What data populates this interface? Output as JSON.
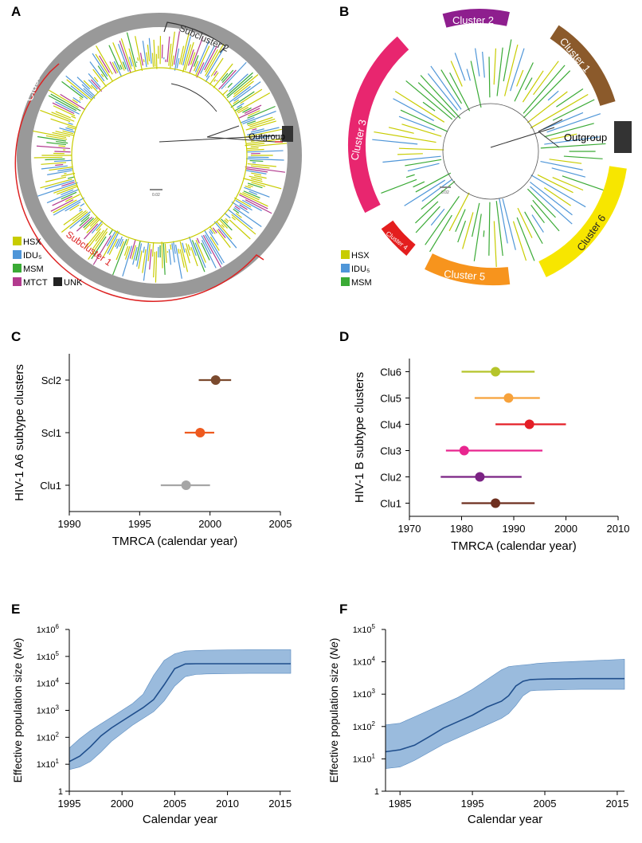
{
  "panels": {
    "A": {
      "letter": "A",
      "cluster_label": "Cluster 1",
      "subcluster1_label": "Subcluster 1",
      "subcluster2_label": "Subcluster 2",
      "outgroup_label": "Outgroup",
      "scale_label": "0.02",
      "legend": [
        {
          "label": "HSX",
          "color": "#c8cc00"
        },
        {
          "label": "IDU₅",
          "color": "#4f96d8"
        },
        {
          "label": "MSM",
          "color": "#3aaa35"
        },
        {
          "label": "MTCT",
          "color": "#b23a8e"
        },
        {
          "label": "UNK",
          "color": "#222222"
        }
      ]
    },
    "B": {
      "letter": "B",
      "clusters": [
        {
          "label": "Cluster 1",
          "color": "#8b5a2b"
        },
        {
          "label": "Cluster 2",
          "color": "#8e1e8e"
        },
        {
          "label": "Cluster 3",
          "color": "#e8266f"
        },
        {
          "label": "Cluster 4",
          "color": "#e41e1e"
        },
        {
          "label": "Cluster 5",
          "color": "#f7941d"
        },
        {
          "label": "Cluster 6",
          "color": "#f7e600"
        }
      ],
      "outgroup_label": "Outgroup",
      "scale_label": "0.02",
      "legend": [
        {
          "label": "HSX",
          "color": "#c8cc00"
        },
        {
          "label": "IDU₅",
          "color": "#4f96d8"
        },
        {
          "label": "MSM",
          "color": "#3aaa35"
        }
      ]
    },
    "C": {
      "letter": "C"
    },
    "D": {
      "letter": "D"
    },
    "E": {
      "letter": "E"
    },
    "F": {
      "letter": "F"
    }
  },
  "chart_data": [
    {
      "id": "C",
      "type": "scatter",
      "title": "",
      "xlabel": "TMRCA (calendar year)",
      "ylabel": "HIV-1 A6 subtype clusters",
      "xlim": [
        1990,
        2005
      ],
      "xticks": [
        1990,
        1995,
        2000,
        2005
      ],
      "categories": [
        "Scl2",
        "Scl1",
        "Clu1"
      ],
      "series": [
        {
          "name": "Scl2",
          "value": 2000.4,
          "lo": 1999.2,
          "hi": 2001.5,
          "color": "#7b4a2e"
        },
        {
          "name": "Scl1",
          "value": 1999.3,
          "lo": 1998.2,
          "hi": 2000.3,
          "color": "#ee5a1f"
        },
        {
          "name": "Clu1",
          "value": 1998.3,
          "lo": 1996.5,
          "hi": 2000.0,
          "color": "#a6a6a6"
        }
      ]
    },
    {
      "id": "D",
      "type": "scatter",
      "title": "",
      "xlabel": "TMRCA (calendar year)",
      "ylabel": "HIV-1 B subtype clusters",
      "xlim": [
        1970,
        2010
      ],
      "xticks": [
        1970,
        1980,
        1990,
        2000,
        2010
      ],
      "categories": [
        "Clu6",
        "Clu5",
        "Clu4",
        "Clu3",
        "Clu2",
        "Clu1"
      ],
      "series": [
        {
          "name": "Clu6",
          "value": 1986.5,
          "lo": 1980.0,
          "hi": 1994.0,
          "color": "#b5c42a"
        },
        {
          "name": "Clu5",
          "value": 1989.0,
          "lo": 1982.5,
          "hi": 1995.0,
          "color": "#f7a23b"
        },
        {
          "name": "Clu4",
          "value": 1993.0,
          "lo": 1986.5,
          "hi": 2000.0,
          "color": "#e41e26"
        },
        {
          "name": "Clu3",
          "value": 1980.5,
          "lo": 1977.0,
          "hi": 1995.5,
          "color": "#e8268f"
        },
        {
          "name": "Clu2",
          "value": 1983.5,
          "lo": 1976.0,
          "hi": 1991.5,
          "color": "#7b2384"
        },
        {
          "name": "Clu1",
          "value": 1986.5,
          "lo": 1980.0,
          "hi": 1994.0,
          "color": "#6e2f1f"
        }
      ]
    },
    {
      "id": "E",
      "type": "area",
      "title": "",
      "xlabel": "Calendar year",
      "ylabel": "Effective population size (Ne)",
      "ylabel_main": "Effective population size (",
      "ylabel_italic": "Ne",
      "ylabel_close": ")",
      "xlim": [
        1995,
        2016
      ],
      "xticks": [
        1995,
        2000,
        2005,
        2010,
        2015
      ],
      "ylog_exponents": [
        0,
        1,
        2,
        3,
        4,
        5,
        6
      ],
      "yticklabels": [
        "1",
        "1x10",
        "1x10",
        "1x10",
        "1x10",
        "1x10",
        "1x10"
      ],
      "ytickexps": [
        "",
        "1",
        "2",
        "3",
        "4",
        "5",
        "6"
      ],
      "x": [
        1995,
        1996,
        1997,
        1998,
        1999,
        2000,
        2001,
        2002,
        2003,
        2004,
        2005,
        2006,
        2007,
        2008,
        2010,
        2012,
        2014,
        2016
      ],
      "median": [
        1.1,
        1.3,
        1.65,
        2.05,
        2.35,
        2.6,
        2.85,
        3.1,
        3.4,
        3.95,
        4.55,
        4.72,
        4.73,
        4.73,
        4.73,
        4.73,
        4.73,
        4.73
      ],
      "upper": [
        1.6,
        1.95,
        2.25,
        2.5,
        2.75,
        3.0,
        3.25,
        3.6,
        4.3,
        4.85,
        5.1,
        5.2,
        5.22,
        5.23,
        5.24,
        5.25,
        5.25,
        5.25
      ],
      "lower": [
        0.8,
        0.9,
        1.1,
        1.45,
        1.85,
        2.15,
        2.45,
        2.7,
        2.95,
        3.35,
        3.9,
        4.25,
        4.33,
        4.35,
        4.36,
        4.37,
        4.37,
        4.37
      ]
    },
    {
      "id": "F",
      "type": "area",
      "title": "",
      "xlabel": "Calendar year",
      "ylabel": "Effective population size (Ne)",
      "ylabel_main": "Effective population size (",
      "ylabel_italic": "Ne",
      "ylabel_close": ")",
      "xlim": [
        1983,
        2016
      ],
      "xticks": [
        1985,
        1995,
        2005,
        2015
      ],
      "ylog_exponents": [
        0,
        1,
        2,
        3,
        4,
        5
      ],
      "yticklabels": [
        "1",
        "1x10",
        "1x10",
        "1x10",
        "1x10",
        "1x10"
      ],
      "ytickexps": [
        "",
        "1",
        "2",
        "3",
        "4",
        "5"
      ],
      "x": [
        1983,
        1985,
        1987,
        1989,
        1991,
        1993,
        1995,
        1997,
        1999,
        2000,
        2001,
        2002,
        2003,
        2004,
        2006,
        2008,
        2010,
        2013,
        2016
      ],
      "median": [
        1.22,
        1.28,
        1.42,
        1.68,
        1.95,
        2.15,
        2.35,
        2.6,
        2.78,
        2.95,
        3.25,
        3.4,
        3.45,
        3.46,
        3.47,
        3.47,
        3.48,
        3.48,
        3.48
      ],
      "upper": [
        2.05,
        2.1,
        2.3,
        2.5,
        2.7,
        2.9,
        3.15,
        3.45,
        3.75,
        3.85,
        3.88,
        3.9,
        3.92,
        3.95,
        3.98,
        4.0,
        4.02,
        4.05,
        4.08
      ],
      "lower": [
        0.7,
        0.75,
        0.95,
        1.2,
        1.45,
        1.65,
        1.85,
        2.05,
        2.25,
        2.4,
        2.65,
        2.95,
        3.1,
        3.12,
        3.13,
        3.14,
        3.15,
        3.15,
        3.15
      ]
    }
  ]
}
